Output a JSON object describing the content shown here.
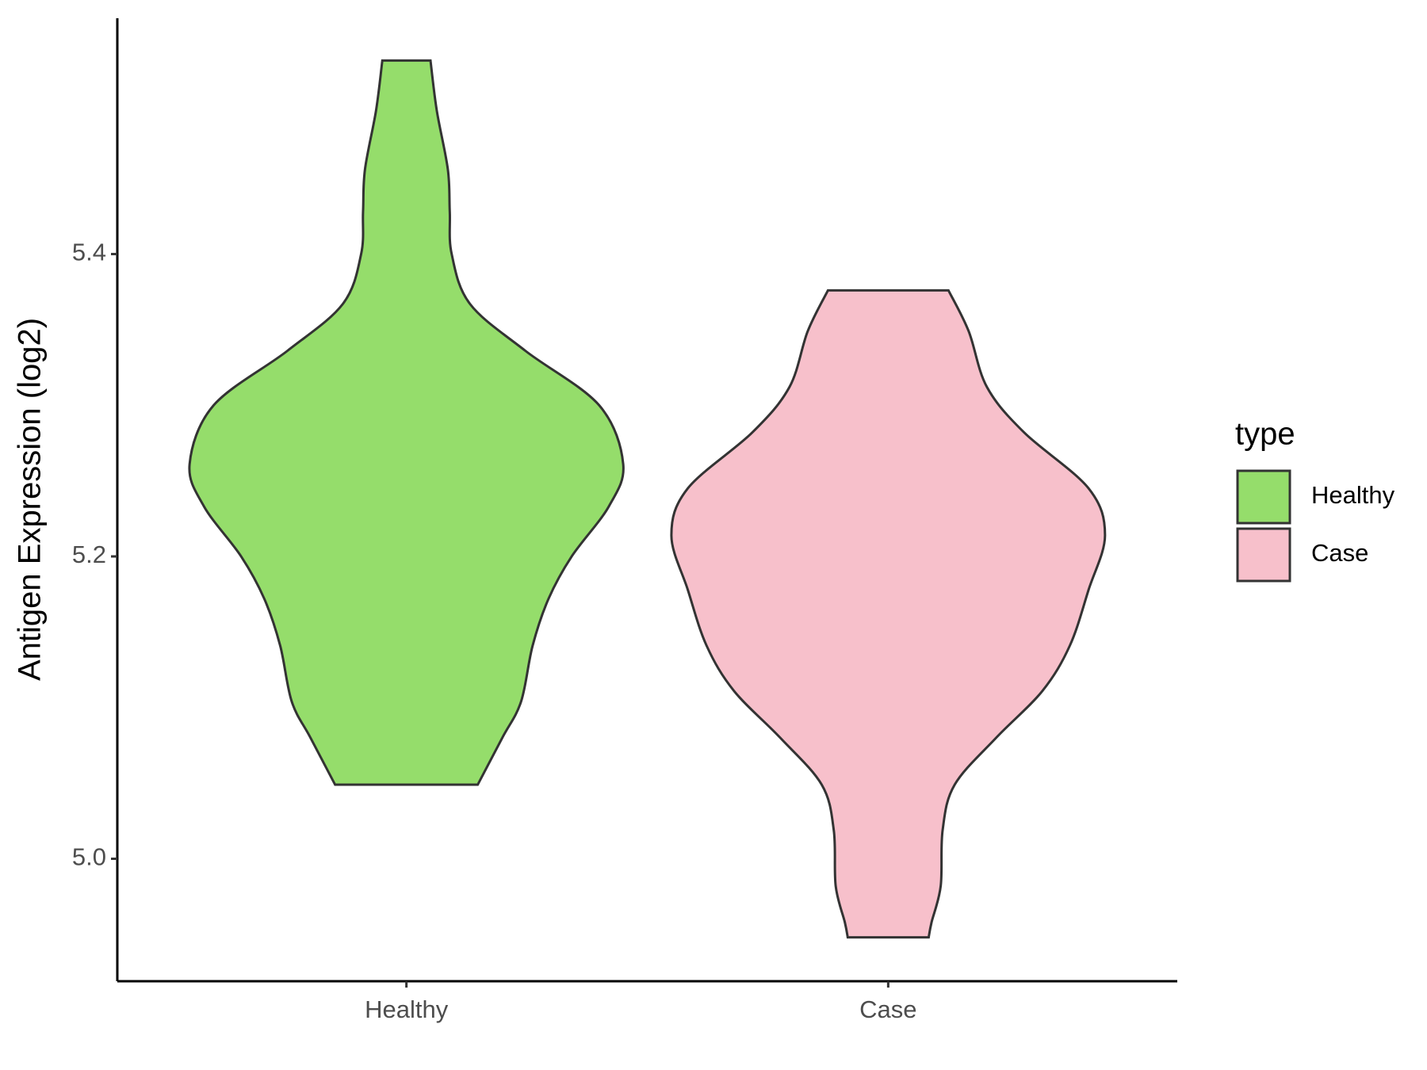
{
  "chart_data": {
    "type": "violin",
    "y_label": "Antigen Expression (log2)",
    "categories": [
      "Healthy",
      "Case"
    ],
    "ylim": [
      4.919,
      5.556
    ],
    "yticks": [
      {
        "value": 5,
        "label": "5.0"
      },
      5.2,
      5.4
    ],
    "legend_title": "type",
    "legend": "right",
    "series": [
      {
        "name": "Healthy",
        "color": "#95dd6b",
        "y": [
          5.528,
          5.495,
          5.456,
          5.428,
          5.4,
          5.367,
          5.336,
          5.3,
          5.261,
          5.233,
          5.2,
          5.172,
          5.141,
          5.104,
          5.08,
          5.049
        ],
        "width": [
          0.05,
          0.063,
          0.086,
          0.09,
          0.094,
          0.132,
          0.247,
          0.4,
          0.45,
          0.42,
          0.343,
          0.295,
          0.262,
          0.238,
          0.199,
          0.148
        ]
      },
      {
        "name": "Case",
        "color": "#f7c0cb",
        "y": [
          5.376,
          5.349,
          5.312,
          5.282,
          5.245,
          5.214,
          5.178,
          5.141,
          5.111,
          5.08,
          5.049,
          5.019,
          4.982,
          4.958,
          4.948
        ],
        "width": [
          0.125,
          0.167,
          0.205,
          0.282,
          0.416,
          0.45,
          0.416,
          0.377,
          0.32,
          0.224,
          0.138,
          0.113,
          0.109,
          0.09,
          0.084
        ]
      }
    ]
  }
}
